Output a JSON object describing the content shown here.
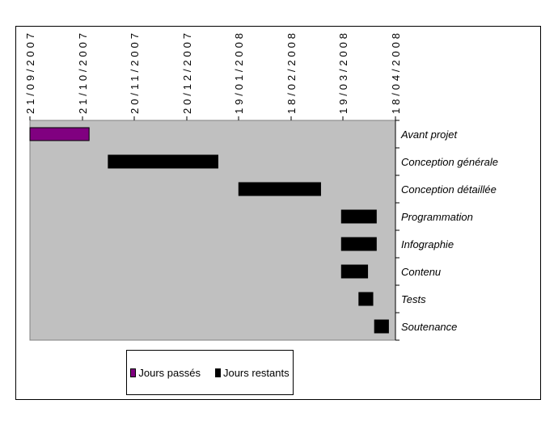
{
  "chart_data": {
    "type": "bar",
    "orientation": "horizontal-gantt",
    "stacked": true,
    "categories": [
      "Avant projet",
      "Conception générale",
      "Conception détaillée",
      "Programmation",
      "Infographie",
      "Contenu",
      "Tests",
      "Soutenance"
    ],
    "x_ticks": [
      "21/09/2007",
      "21/10/2007",
      "20/11/2007",
      "20/12/2007",
      "19/01/2008",
      "18/02/2008",
      "19/03/2008",
      "18/04/2008"
    ],
    "x_range": [
      "2007-09-21",
      "2008-04-18"
    ],
    "series": [
      {
        "name": "Jours passés",
        "color": "#800080",
        "values": [
          {
            "start": "2007-09-21",
            "end": "2007-10-25"
          },
          null,
          null,
          null,
          null,
          null,
          null,
          null
        ]
      },
      {
        "name": "Jours restants",
        "color": "#000000",
        "values": [
          null,
          {
            "start": "2007-11-05",
            "end": "2008-01-07"
          },
          {
            "start": "2008-01-19",
            "end": "2008-03-06"
          },
          {
            "start": "2008-03-18",
            "end": "2008-04-07"
          },
          {
            "start": "2008-03-18",
            "end": "2008-04-07"
          },
          {
            "start": "2008-03-18",
            "end": "2008-04-02"
          },
          {
            "start": "2008-03-28",
            "end": "2008-04-05"
          },
          {
            "start": "2008-04-06",
            "end": "2008-04-14"
          }
        ]
      }
    ],
    "plot_background": "#c0c0c0",
    "grid": false,
    "legend_position": "bottom"
  }
}
